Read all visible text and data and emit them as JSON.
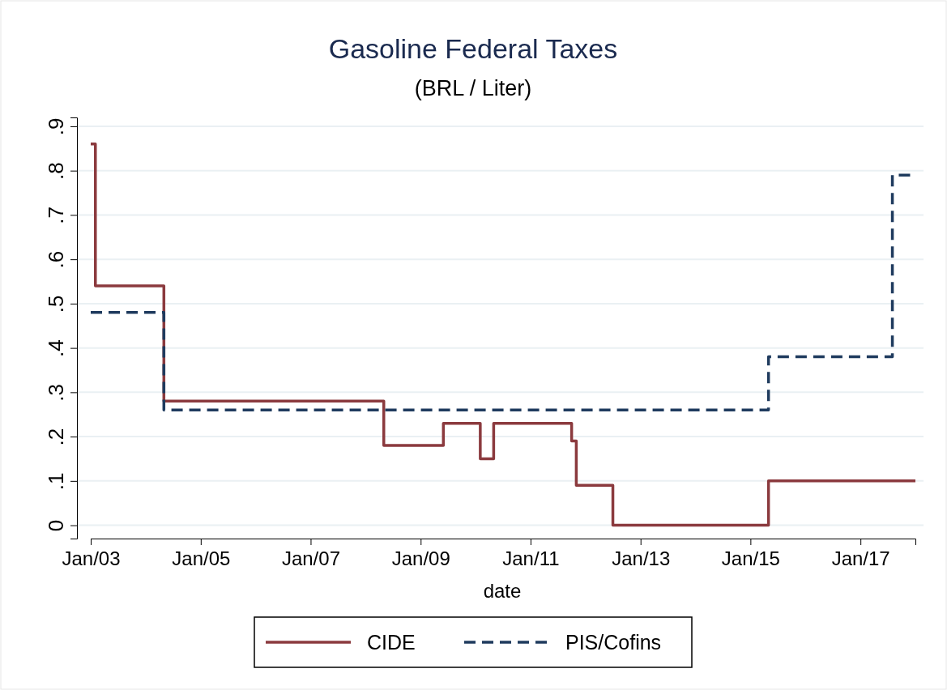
{
  "chart_data": {
    "type": "step",
    "title": "Gasoline Federal Taxes",
    "subtitle": "(BRL / Liter)",
    "xlabel": "date",
    "xlim": [
      "2003-01",
      "2018-01"
    ],
    "xticks": [
      {
        "value": "2003-01",
        "label": "Jan/03"
      },
      {
        "value": "2005-01",
        "label": "Jan/05"
      },
      {
        "value": "2007-01",
        "label": "Jan/07"
      },
      {
        "value": "2009-01",
        "label": "Jan/09"
      },
      {
        "value": "2011-01",
        "label": "Jan/11"
      },
      {
        "value": "2013-01",
        "label": "Jan/13"
      },
      {
        "value": "2015-01",
        "label": "Jan/15"
      },
      {
        "value": "2017-01",
        "label": "Jan/17"
      }
    ],
    "ylim": [
      -0.03,
      0.92
    ],
    "yticks": [
      {
        "value": 0,
        "label": "0"
      },
      {
        "value": 0.1,
        "label": ".1"
      },
      {
        "value": 0.2,
        "label": ".2"
      },
      {
        "value": 0.3,
        "label": ".3"
      },
      {
        "value": 0.4,
        "label": ".4"
      },
      {
        "value": 0.5,
        "label": ".5"
      },
      {
        "value": 0.6,
        "label": ".6"
      },
      {
        "value": 0.7,
        "label": ".7"
      },
      {
        "value": 0.8,
        "label": ".8"
      },
      {
        "value": 0.9,
        "label": ".9"
      }
    ],
    "grid": "y",
    "legend": "bottom",
    "series": [
      {
        "name": "CIDE",
        "color": "#8b3a3e",
        "line_style": "solid",
        "x": [
          "2003-01",
          "2003-02",
          "2004-05",
          "2008-05",
          "2009-06",
          "2010-02",
          "2010-05",
          "2011-10",
          "2011-11",
          "2012-07",
          "2015-05",
          "2018-01"
        ],
        "values": [
          0.86,
          0.54,
          0.28,
          0.18,
          0.23,
          0.15,
          0.23,
          0.19,
          0.09,
          0,
          0.1,
          0.1
        ]
      },
      {
        "name": "PIS/Cofins",
        "color": "#1f3b5e",
        "line_style": "dashed",
        "x": [
          "2003-01",
          "2004-05",
          "2015-05",
          "2017-08",
          "2018-01"
        ],
        "values": [
          0.48,
          0.26,
          0.38,
          0.79,
          0.79
        ]
      }
    ]
  }
}
